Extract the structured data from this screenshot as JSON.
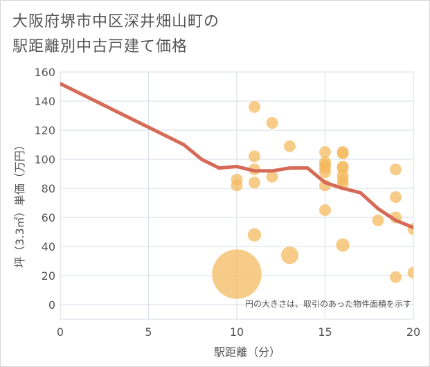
{
  "title_lines": [
    "大阪府堺市中区深井畑山町の",
    "駅距離別中古戸建て価格"
  ],
  "colors": {
    "bubble": "#f4b95c",
    "line": "#d56a57",
    "grid": "#d6dde6",
    "text": "#555555"
  },
  "chart_data": {
    "type": "scatter",
    "title": "大阪府堺市中区深井畑山町の駅距離別中古戸建て価格",
    "xlabel": "駅距離（分）",
    "ylabel": "坪（3.3㎡）単価（万円）",
    "xlim": [
      0,
      20
    ],
    "ylim": [
      -10,
      160
    ],
    "xticks": [
      0,
      5,
      10,
      15,
      20
    ],
    "yticks": [
      0,
      20,
      40,
      60,
      80,
      100,
      120,
      140,
      160
    ],
    "grid": true,
    "note": "円の大きさは、取引のあった物件面積を示す",
    "points": [
      {
        "x": 10,
        "y": 21,
        "size": 9
      },
      {
        "x": 10,
        "y": 82,
        "size": 1
      },
      {
        "x": 10,
        "y": 86,
        "size": 1
      },
      {
        "x": 11,
        "y": 136,
        "size": 1
      },
      {
        "x": 11,
        "y": 102,
        "size": 1
      },
      {
        "x": 11,
        "y": 93,
        "size": 1
      },
      {
        "x": 11,
        "y": 84,
        "size": 1
      },
      {
        "x": 11,
        "y": 48,
        "size": 1.3
      },
      {
        "x": 12,
        "y": 125,
        "size": 1
      },
      {
        "x": 12,
        "y": 88,
        "size": 1
      },
      {
        "x": 13,
        "y": 109,
        "size": 1
      },
      {
        "x": 13,
        "y": 34,
        "size": 2.2
      },
      {
        "x": 15,
        "y": 105,
        "size": 1
      },
      {
        "x": 15,
        "y": 98,
        "size": 1
      },
      {
        "x": 15,
        "y": 96,
        "size": 1
      },
      {
        "x": 15,
        "y": 94,
        "size": 1
      },
      {
        "x": 15,
        "y": 91,
        "size": 1
      },
      {
        "x": 15,
        "y": 82,
        "size": 1
      },
      {
        "x": 15,
        "y": 65,
        "size": 1
      },
      {
        "x": 16,
        "y": 105,
        "size": 1
      },
      {
        "x": 16,
        "y": 104,
        "size": 1
      },
      {
        "x": 16,
        "y": 95,
        "size": 1
      },
      {
        "x": 16,
        "y": 94,
        "size": 1
      },
      {
        "x": 16,
        "y": 89,
        "size": 1
      },
      {
        "x": 16,
        "y": 86,
        "size": 1
      },
      {
        "x": 16,
        "y": 83,
        "size": 1
      },
      {
        "x": 16,
        "y": 41,
        "size": 1.3
      },
      {
        "x": 18,
        "y": 58,
        "size": 1
      },
      {
        "x": 19,
        "y": 93,
        "size": 1
      },
      {
        "x": 19,
        "y": 74,
        "size": 1
      },
      {
        "x": 19,
        "y": 60,
        "size": 1
      },
      {
        "x": 19,
        "y": 19,
        "size": 1
      },
      {
        "x": 20,
        "y": 52,
        "size": 1
      },
      {
        "x": 20,
        "y": 22,
        "size": 1
      }
    ],
    "trend": {
      "x": [
        0,
        1,
        2,
        3,
        4,
        5,
        6,
        7,
        8,
        9,
        10,
        11,
        12,
        13,
        14,
        15,
        16,
        17,
        18,
        19,
        20
      ],
      "y": [
        152,
        146,
        140,
        134,
        128,
        122,
        116,
        110,
        100,
        94,
        95,
        92,
        92,
        94,
        94,
        84,
        80,
        77,
        66,
        58,
        53
      ]
    }
  }
}
